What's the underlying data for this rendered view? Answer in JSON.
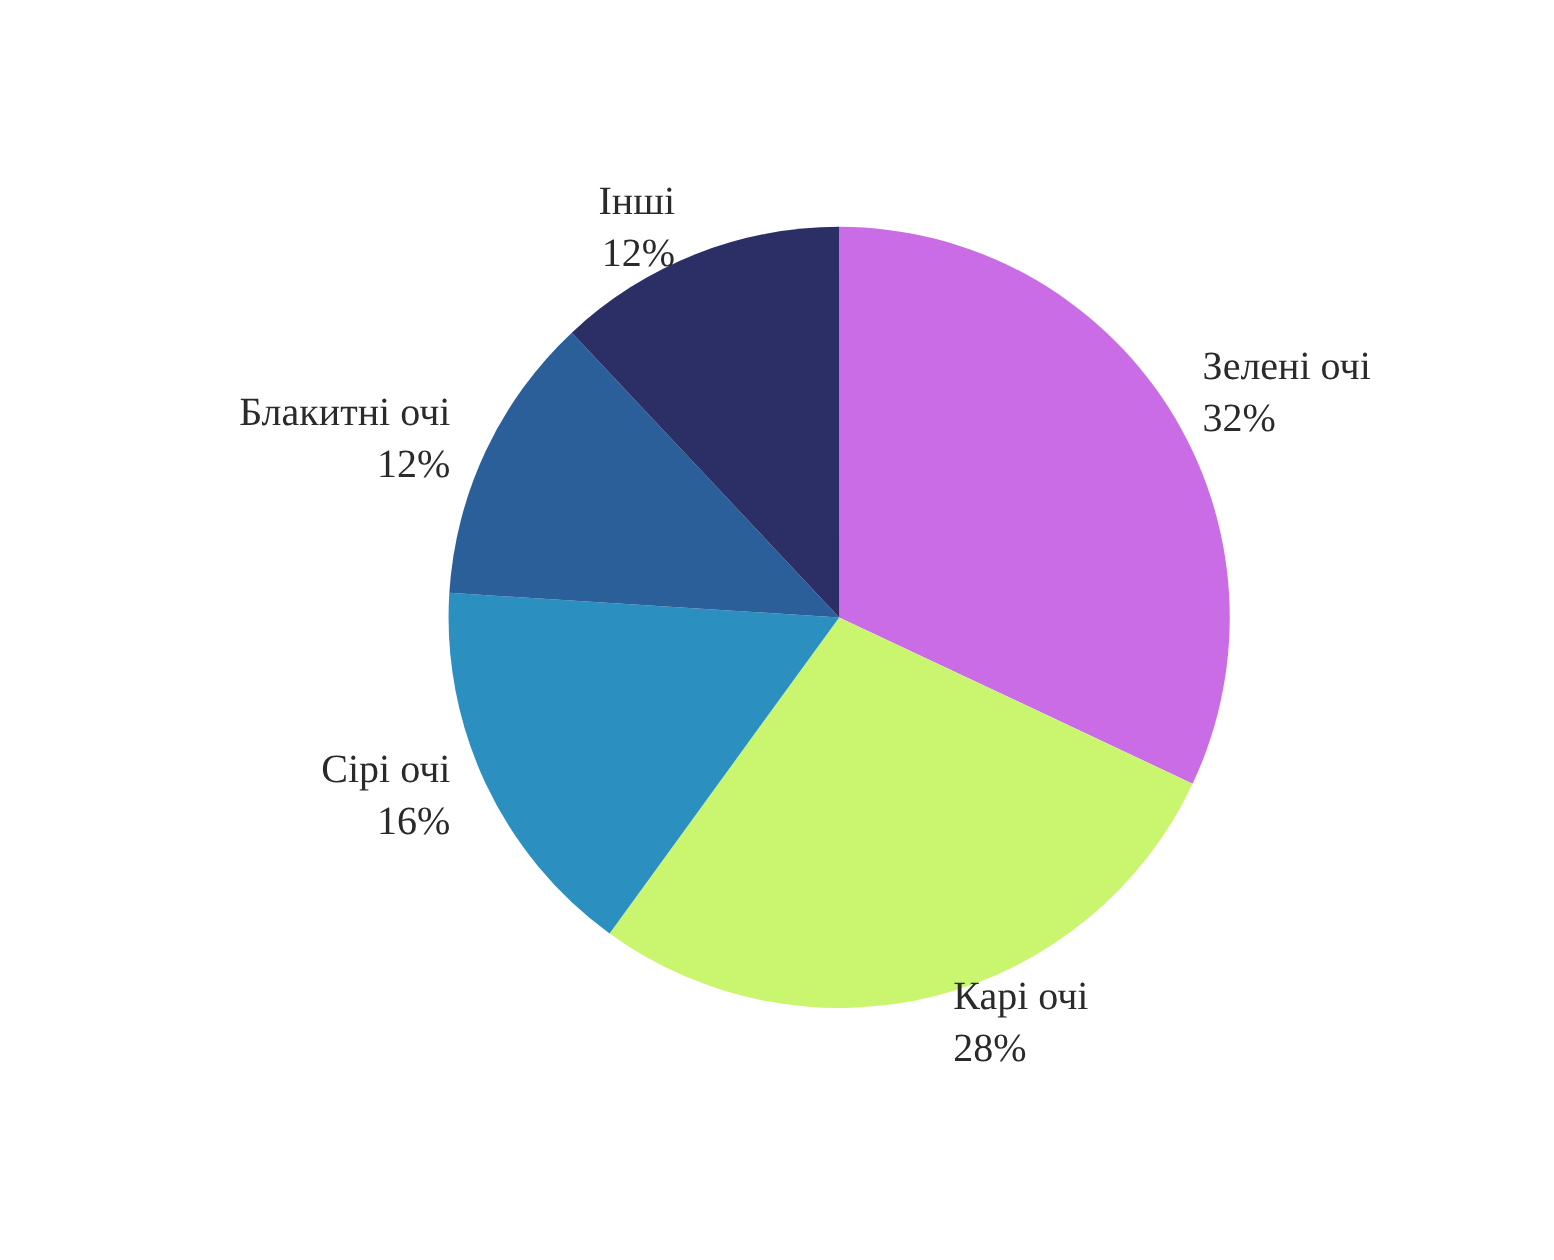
{
  "chart_data": {
    "type": "pie",
    "categories": [
      "Зелені очі",
      "Карі очі",
      "Сірі очі",
      "Блакитні очі",
      "Інші"
    ],
    "values": [
      32,
      28,
      16,
      12,
      12
    ],
    "value_labels": [
      "32%",
      "28%",
      "16%",
      "12%",
      "12%"
    ],
    "colors": [
      "#c96ce6",
      "#c9f66e",
      "#2b8fc0",
      "#2a5f9a",
      "#2b2f66"
    ],
    "legend": false
  }
}
